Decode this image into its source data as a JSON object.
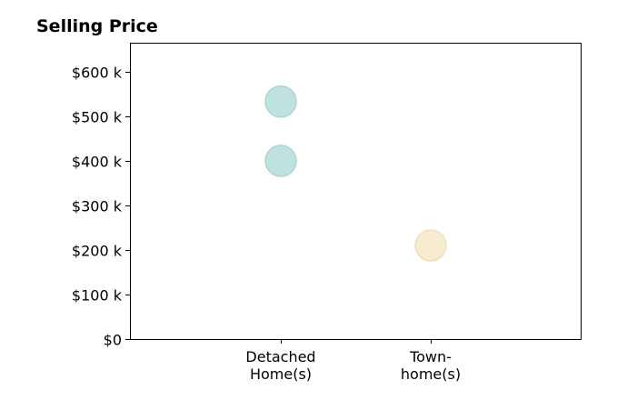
{
  "chart_data": {
    "type": "scatter",
    "title": "Selling Price",
    "xlabel": "",
    "ylabel": "",
    "categories": [
      [
        "Detached",
        "Home(s)"
      ],
      [
        "Town-",
        "home(s)"
      ]
    ],
    "ylim": [
      0,
      665000
    ],
    "yticks": [
      {
        "value": 0,
        "label": "$0"
      },
      {
        "value": 100000,
        "label": "$100 k"
      },
      {
        "value": 200000,
        "label": "$200 k"
      },
      {
        "value": 300000,
        "label": "$300 k"
      },
      {
        "value": 400000,
        "label": "$400 k"
      },
      {
        "value": 500000,
        "label": "$500 k"
      },
      {
        "value": 600000,
        "label": "$600 k"
      }
    ],
    "points": [
      {
        "category": 0,
        "y": 533000,
        "color": "#bfe2df",
        "edge": "#a8d7d3"
      },
      {
        "category": 0,
        "y": 400000,
        "color": "#bfe2df",
        "edge": "#a8d7d3"
      },
      {
        "category": 1,
        "y": 210000,
        "color": "#f8ecd0",
        "edge": "#f1e0b8"
      }
    ],
    "grid": false,
    "legend": "none"
  }
}
